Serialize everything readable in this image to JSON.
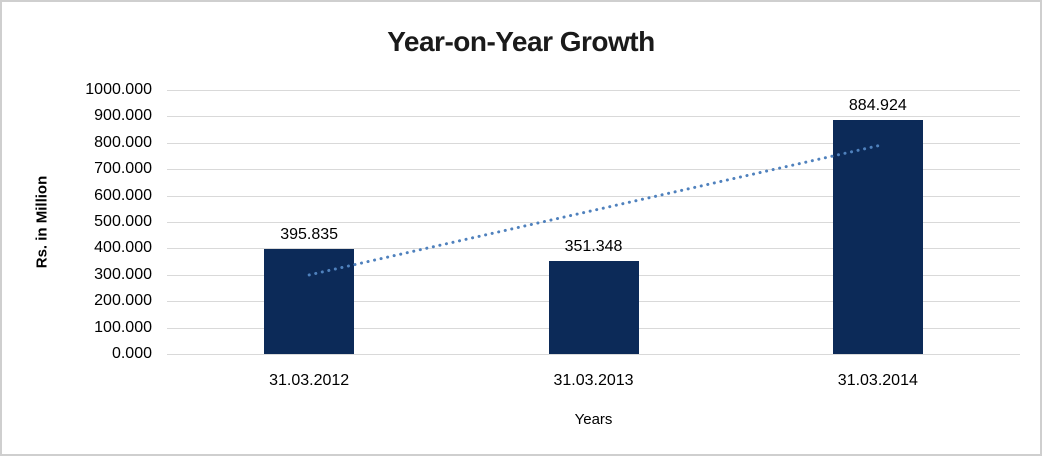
{
  "chart_data": {
    "type": "bar",
    "title": "Year-on-Year Growth",
    "xlabel": "Years",
    "ylabel": "Rs. in Million",
    "categories": [
      "31.03.2012",
      "31.03.2013",
      "31.03.2014"
    ],
    "values": [
      395.835,
      351.348,
      884.924
    ],
    "data_labels": [
      "395.835",
      "351.348",
      "884.924"
    ],
    "ylim": [
      0,
      1000
    ],
    "ytick_step": 100,
    "ytick_labels": [
      "0.000",
      "100.000",
      "200.000",
      "300.000",
      "400.000",
      "500.000",
      "600.000",
      "700.000",
      "800.000",
      "900.000",
      "1000.000"
    ],
    "grid": "horizontal",
    "legend": "none",
    "bar_color": "#0c2a58",
    "gridline_color": "#d9d9d9",
    "trendline": {
      "type": "linear",
      "style": "dotted",
      "color": "#4f81bd"
    }
  }
}
